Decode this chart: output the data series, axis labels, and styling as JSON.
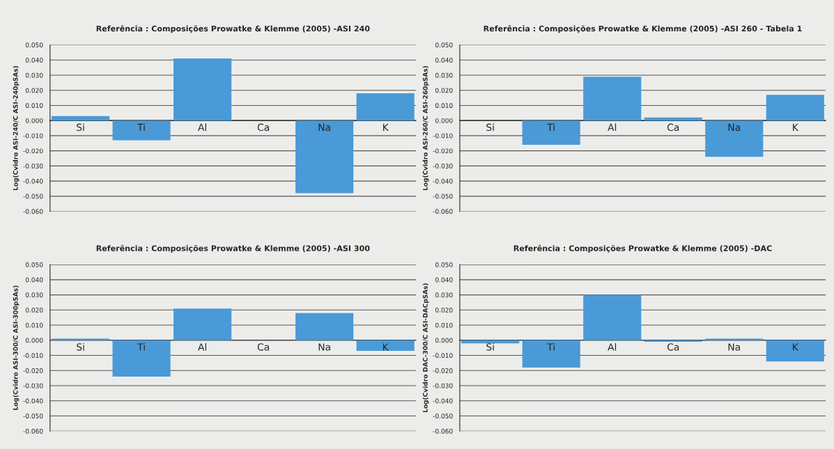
{
  "chart_data": [
    {
      "type": "bar",
      "title": "Referência : Composições Prowatke & Klemme (2005) -ASI 240",
      "ylabel": "Log(Cvidro ASI-240/C ASI-240pSAs)",
      "categories": [
        "Si",
        "Ti",
        "Al",
        "Ca",
        "Na",
        "K"
      ],
      "color": "#4a9ad8",
      "values": [
        0.003,
        -0.013,
        0.041,
        0.0,
        -0.048,
        0.018
      ],
      "ylim": [
        -0.06,
        0.05
      ],
      "yticks": [
        {
          "value": 0.05,
          "label": "0.050"
        },
        {
          "value": 0.04,
          "label": "0.040"
        },
        {
          "value": 0.03,
          "label": "0.030"
        },
        {
          "value": 0.02,
          "label": "0.020"
        },
        {
          "value": 0.01,
          "label": "0.010"
        },
        {
          "value": 0.0,
          "label": "0.000"
        },
        {
          "value": -0.01,
          "label": "-0.010"
        },
        {
          "value": -0.02,
          "label": "-0.020"
        },
        {
          "value": -0.03,
          "label": "-0.030"
        },
        {
          "value": -0.04,
          "label": "-0.040"
        },
        {
          "value": -0.05,
          "label": "-0.050"
        },
        {
          "value": -0.06,
          "label": "-0.060"
        }
      ],
      "grid": "y"
    },
    {
      "type": "bar",
      "title": "Referência : Composições Prowatke & Klemme (2005) -ASI 260 - Tabela 1",
      "ylabel": "Log(Cvidro ASI-260/C ASI-260pSAs)",
      "categories": [
        "Si",
        "Ti",
        "Al",
        "Ca",
        "Na",
        "K"
      ],
      "color": "#4a9ad8",
      "values": [
        0.0,
        -0.016,
        0.029,
        0.002,
        -0.024,
        0.017
      ],
      "ylim": [
        -0.06,
        0.05
      ],
      "yticks": [
        {
          "value": 0.05,
          "label": "0.050"
        },
        {
          "value": 0.04,
          "label": "0.040"
        },
        {
          "value": 0.03,
          "label": "0.030"
        },
        {
          "value": 0.02,
          "label": "0.020"
        },
        {
          "value": 0.01,
          "label": "0.010"
        },
        {
          "value": 0.0,
          "label": "0.000"
        },
        {
          "value": -0.01,
          "label": "-0.010"
        },
        {
          "value": -0.02,
          "label": "-0.020"
        },
        {
          "value": -0.03,
          "label": "-0.030"
        },
        {
          "value": -0.04,
          "label": "-0.040"
        },
        {
          "value": -0.05,
          "label": "-0.050"
        },
        {
          "value": -0.06,
          "label": "-0.060"
        }
      ],
      "grid": "y"
    },
    {
      "type": "bar",
      "title": "Referência : Composições Prowatke & Klemme (2005) -ASI 300",
      "ylabel": "Log(Cvidro ASI-300/C ASI-300pSAs)",
      "categories": [
        "Si",
        "Ti",
        "Al",
        "Ca",
        "Na",
        "K"
      ],
      "color": "#4a9ad8",
      "values": [
        0.001,
        -0.024,
        0.021,
        0.0,
        0.018,
        -0.007
      ],
      "ylim": [
        -0.06,
        0.05
      ],
      "yticks": [
        {
          "value": 0.05,
          "label": "0.050"
        },
        {
          "value": 0.04,
          "label": "0.040"
        },
        {
          "value": 0.03,
          "label": "0.030"
        },
        {
          "value": 0.02,
          "label": "0.020"
        },
        {
          "value": 0.01,
          "label": "0.010"
        },
        {
          "value": 0.0,
          "label": "0.000"
        },
        {
          "value": -0.01,
          "label": "-0.010"
        },
        {
          "value": -0.02,
          "label": "-0.020"
        },
        {
          "value": -0.03,
          "label": "-0.030"
        },
        {
          "value": -0.04,
          "label": "-0.040"
        },
        {
          "value": -0.05,
          "label": "-0.050"
        },
        {
          "value": -0.06,
          "label": "-0.060"
        }
      ],
      "grid": "y"
    },
    {
      "type": "bar",
      "title": "Referência : Composições Prowatke & Klemme (2005) -DAC",
      "ylabel": "Log(Cvidro DAC-300/C ASI-DACpSAs)",
      "categories": [
        "Si",
        "Ti",
        "Al",
        "Ca",
        "Na",
        "K"
      ],
      "color": "#4a9ad8",
      "values": [
        -0.002,
        -0.018,
        0.03,
        -0.001,
        0.001,
        -0.014
      ],
      "ylim": [
        -0.06,
        0.05
      ],
      "yticks": [
        {
          "value": 0.05,
          "label": "0.050"
        },
        {
          "value": 0.04,
          "label": "0.040"
        },
        {
          "value": 0.03,
          "label": "0.030"
        },
        {
          "value": 0.02,
          "label": "0.020"
        },
        {
          "value": 0.01,
          "label": "0.010"
        },
        {
          "value": 0.0,
          "label": "0.000"
        },
        {
          "value": -0.01,
          "label": "-0.010"
        },
        {
          "value": -0.02,
          "label": "-0.020"
        },
        {
          "value": -0.03,
          "label": "-0.030"
        },
        {
          "value": -0.04,
          "label": "-0.040"
        },
        {
          "value": -0.05,
          "label": "-0.050"
        },
        {
          "value": -0.06,
          "label": "-0.060"
        }
      ],
      "grid": "y"
    }
  ]
}
